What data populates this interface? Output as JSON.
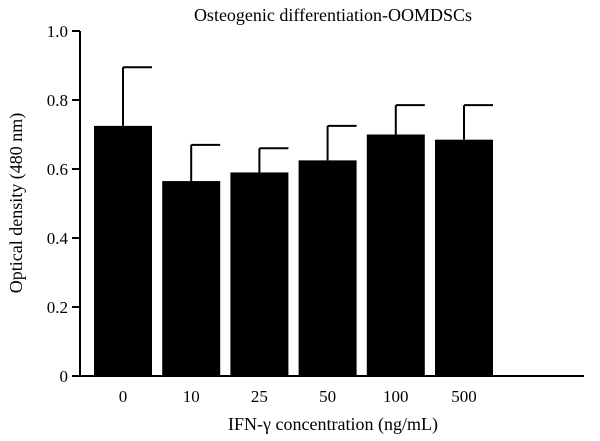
{
  "chart_data": {
    "type": "bar",
    "title": "Osteogenic differentiation-OOMDSCs",
    "xlabel": "IFN-γ concentration (ng/mL)",
    "ylabel": "Optical density (480 nm)",
    "categories": [
      "0",
      "10",
      "25",
      "50",
      "100",
      "500"
    ],
    "values": [
      0.725,
      0.565,
      0.59,
      0.625,
      0.7,
      0.685
    ],
    "error_upper": [
      0.17,
      0.105,
      0.07,
      0.1,
      0.085,
      0.1
    ],
    "ylim": [
      0,
      1.0
    ],
    "yticks": [
      0,
      0.2,
      0.4,
      0.6,
      0.8,
      1.0
    ],
    "ytick_labels": [
      "0",
      "0.2",
      "0.4",
      "0.6",
      "0.8",
      "1.0"
    ],
    "grid": false,
    "legend": "none",
    "colors": {
      "bar": "#000000",
      "axis": "#000000",
      "background": "#ffffff"
    }
  }
}
